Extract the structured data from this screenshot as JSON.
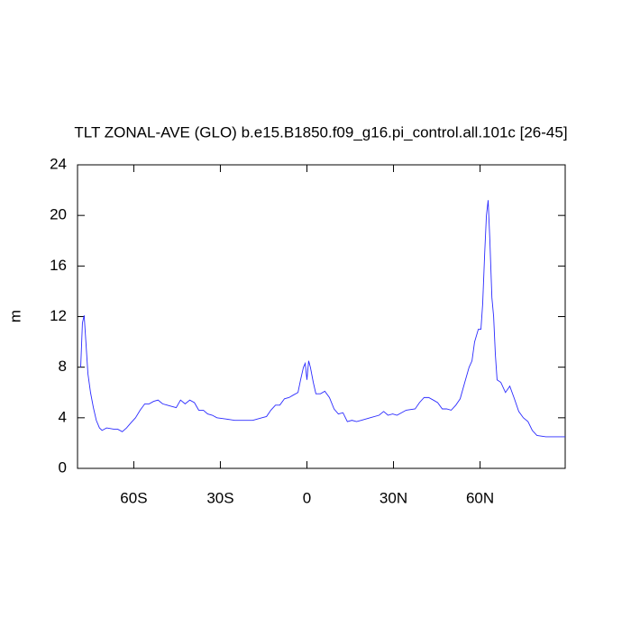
{
  "chart_data": {
    "type": "line",
    "title": "TLT ZONAL-AVE (GLO) b.e15.B1850.f09_g16.pi_control.all.101c [26-45]",
    "ylabel": "m",
    "x": [
      -78.4,
      -77.8,
      -77.2,
      -76.6,
      -75.9,
      -75,
      -74,
      -73,
      -71.9,
      -71,
      -69.4,
      -67,
      -65.6,
      -64,
      -62.5,
      -61,
      -59.4,
      -57.8,
      -56.2,
      -54.7,
      -53.1,
      -51.6,
      -50,
      -48.4,
      -46.9,
      -45.3,
      -43.8,
      -42.2,
      -40.6,
      -39,
      -37.5,
      -35.9,
      -34.4,
      -32.8,
      -31.2,
      -28.1,
      -25,
      -21.9,
      -18.8,
      -15.6,
      -14,
      -12.5,
      -10.9,
      -9.4,
      -7.8,
      -6.2,
      -4.7,
      -3.1,
      -2.2,
      -1.2,
      -0.6,
      0,
      0.6,
      1.2,
      2.2,
      3.1,
      4.7,
      6.2,
      7.8,
      9.4,
      10.9,
      12.5,
      14,
      15.6,
      17.2,
      18.8,
      21.9,
      25,
      26.6,
      28.1,
      29.7,
      31.2,
      34.4,
      37.5,
      39,
      40.6,
      42.2,
      43.8,
      45.3,
      46.9,
      48.4,
      50,
      51.6,
      53.1,
      54.7,
      56.2,
      57.2,
      58.1,
      59.4,
      60.3,
      60.9,
      61.6,
      62.2,
      62.8,
      63.4,
      64.1,
      64.7,
      65.3,
      65.9,
      67.2,
      68.8,
      70.3,
      71.9,
      73.4,
      75,
      76.6,
      78.1,
      79.7,
      82.8,
      89.5
    ],
    "series": [
      {
        "name": "TLT",
        "color": "#2b2bff",
        "values": [
          8,
          11.5,
          12.1,
          10,
          7.5,
          6,
          4.8,
          3.8,
          3.2,
          3.0,
          3.2,
          3.1,
          3.1,
          2.9,
          3.2,
          3.6,
          4.0,
          4.6,
          5.1,
          5.1,
          5.3,
          5.4,
          5.1,
          5.0,
          4.9,
          4.8,
          5.4,
          5.1,
          5.4,
          5.2,
          4.6,
          4.6,
          4.3,
          4.2,
          4.0,
          3.9,
          3.8,
          3.8,
          3.8,
          4.0,
          4.1,
          4.6,
          5.0,
          5.0,
          5.5,
          5.6,
          5.8,
          6.0,
          7.0,
          8.0,
          8.3,
          7.0,
          8.5,
          8.0,
          6.8,
          5.9,
          5.9,
          6.1,
          5.6,
          4.7,
          4.3,
          4.4,
          3.7,
          3.8,
          3.7,
          3.8,
          4.0,
          4.2,
          4.5,
          4.2,
          4.3,
          4.2,
          4.6,
          4.7,
          5.2,
          5.6,
          5.6,
          5.4,
          5.2,
          4.7,
          4.7,
          4.6,
          5.0,
          5.5,
          6.8,
          8.0,
          8.5,
          10,
          11,
          11,
          13,
          17,
          20,
          21.2,
          18,
          13.5,
          12,
          9,
          7,
          6.8,
          6.0,
          6.5,
          5.5,
          4.5,
          4.0,
          3.7,
          3.0,
          2.6,
          2.5,
          2.5
        ]
      }
    ],
    "xlim": [
      -79.5,
      89.5
    ],
    "xticks": [
      {
        "value": -60,
        "label": "60S"
      },
      {
        "value": -30,
        "label": "30S"
      },
      0,
      {
        "value": 30,
        "label": "30N"
      },
      {
        "value": 60,
        "label": "60N"
      }
    ],
    "ylim": [
      0,
      24
    ],
    "yticks": [
      0,
      4,
      8,
      12,
      16,
      20,
      24
    ]
  }
}
